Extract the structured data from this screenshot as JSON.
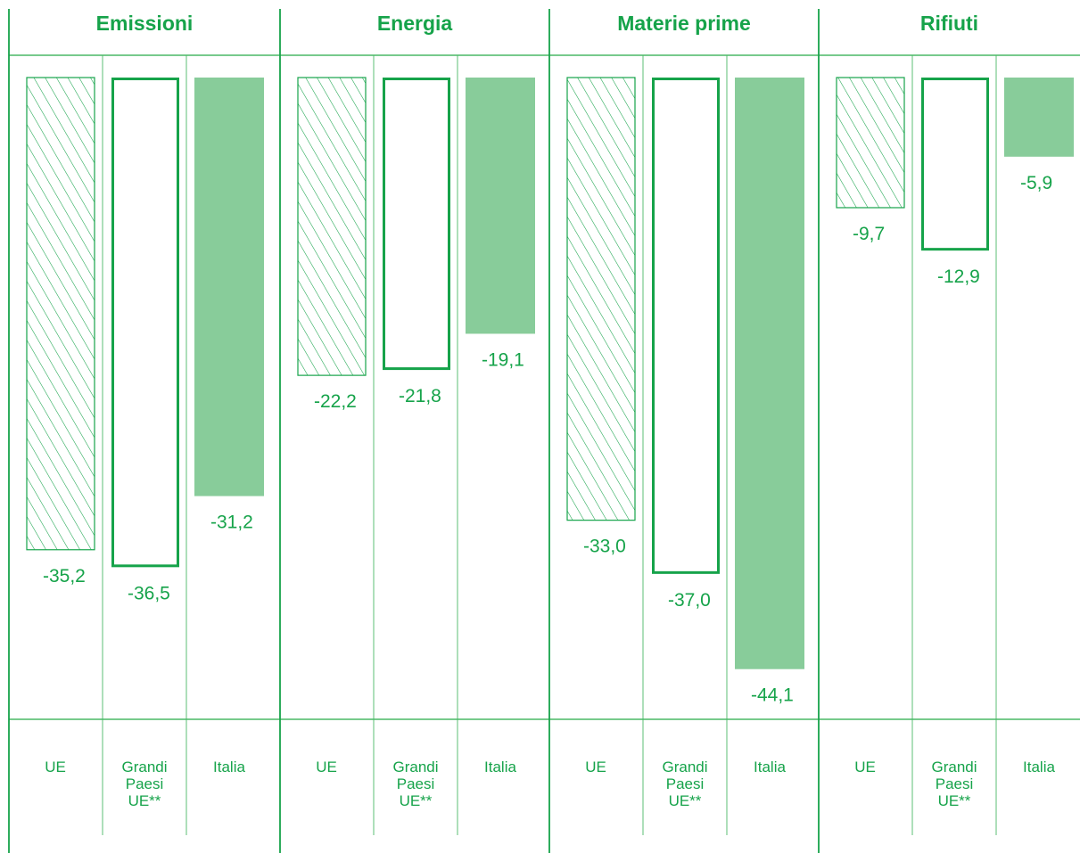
{
  "chart_data": {
    "type": "bar",
    "groups": [
      "Emissioni",
      "Energia",
      "Materie prime",
      "Rifiuti"
    ],
    "series": [
      {
        "name": "UE",
        "values": [
          -35.2,
          -22.2,
          -33.0,
          -9.7
        ]
      },
      {
        "name": "Grandi Paesi UE**",
        "values": [
          -36.5,
          -21.8,
          -37.0,
          -12.9
        ]
      },
      {
        "name": "Italia",
        "values": [
          -31.2,
          -19.1,
          -44.1,
          -5.9
        ]
      }
    ],
    "data_labels": [
      [
        "-35,2",
        "-36,5",
        "-31,2"
      ],
      [
        "-22,2",
        "-21,8",
        "-19,1"
      ],
      [
        "-33,0",
        "-37,0",
        "-44,1"
      ],
      [
        "-9,7",
        "-12,9",
        "-5,9"
      ]
    ],
    "category_labels": [
      [
        "UE"
      ],
      [
        "Grandi",
        "Paesi",
        "UE**"
      ],
      [
        "Italia"
      ]
    ],
    "ylim": [
      -48,
      0
    ],
    "orientation": "bars grow downward from zero",
    "colors": {
      "green": "#16a34a",
      "italia_fill": "#88cc9a",
      "grid": "#4ab866"
    },
    "styles": [
      "hatched",
      "outline",
      "filled"
    ]
  }
}
